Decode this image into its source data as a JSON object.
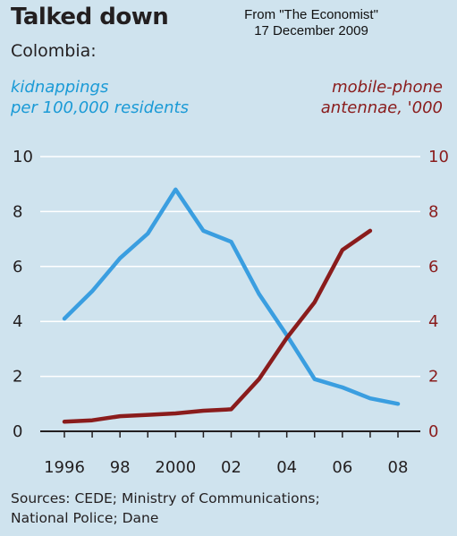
{
  "header": {
    "title": "Talked down",
    "subtitle": "Colombia:",
    "source_note_line1": "From \"The Economist\"",
    "source_note_line2": "17 December 2009"
  },
  "axes": {
    "left_title_line1": "kidnappings",
    "left_title_line2": "per 100,000 residents",
    "right_title_line1": "mobile-phone",
    "right_title_line2": "antennae, '000"
  },
  "footer": {
    "sources_line1": "Sources: CEDE; Ministry of Communications;",
    "sources_line2": "National Police; Dane"
  },
  "colors": {
    "kidnappings": "#3a9ee0",
    "antennae": "#8a1c1c",
    "grid": "#ffffff",
    "axis": "#231f20"
  },
  "chart_data": {
    "type": "line",
    "title": "Talked down",
    "subtitle": "Colombia:",
    "xlabel": "",
    "x_tick_labels": [
      "1996",
      "98",
      "2000",
      "02",
      "04",
      "06",
      "08"
    ],
    "xlim": [
      1996,
      2008
    ],
    "grid": true,
    "left_axis": {
      "label": "kidnappings per 100,000 residents",
      "ylim": [
        0,
        10
      ],
      "ticks": [
        "0",
        "2",
        "4",
        "6",
        "8",
        "10"
      ]
    },
    "right_axis": {
      "label": "mobile-phone antennae, '000",
      "ylim": [
        0,
        10
      ],
      "ticks": [
        "0",
        "2",
        "4",
        "6",
        "8",
        "10"
      ]
    },
    "series": [
      {
        "axis": "left",
        "x": [
          1996,
          1997,
          1998,
          1999,
          2000,
          2001,
          2002,
          2003,
          2004,
          2005,
          2006,
          2007,
          2008
        ],
        "values": [
          4.1,
          5.1,
          6.3,
          7.2,
          8.8,
          7.3,
          6.9,
          5.0,
          3.5,
          1.9,
          1.6,
          1.2,
          1.0
        ]
      },
      {
        "axis": "right",
        "x": [
          1996,
          1997,
          1998,
          1999,
          2000,
          2001,
          2002,
          2003,
          2004,
          2005,
          2006,
          2007
        ],
        "values": [
          0.35,
          0.4,
          0.55,
          0.6,
          0.65,
          0.75,
          0.8,
          1.9,
          3.4,
          4.7,
          6.6,
          7.3
        ]
      }
    ]
  }
}
